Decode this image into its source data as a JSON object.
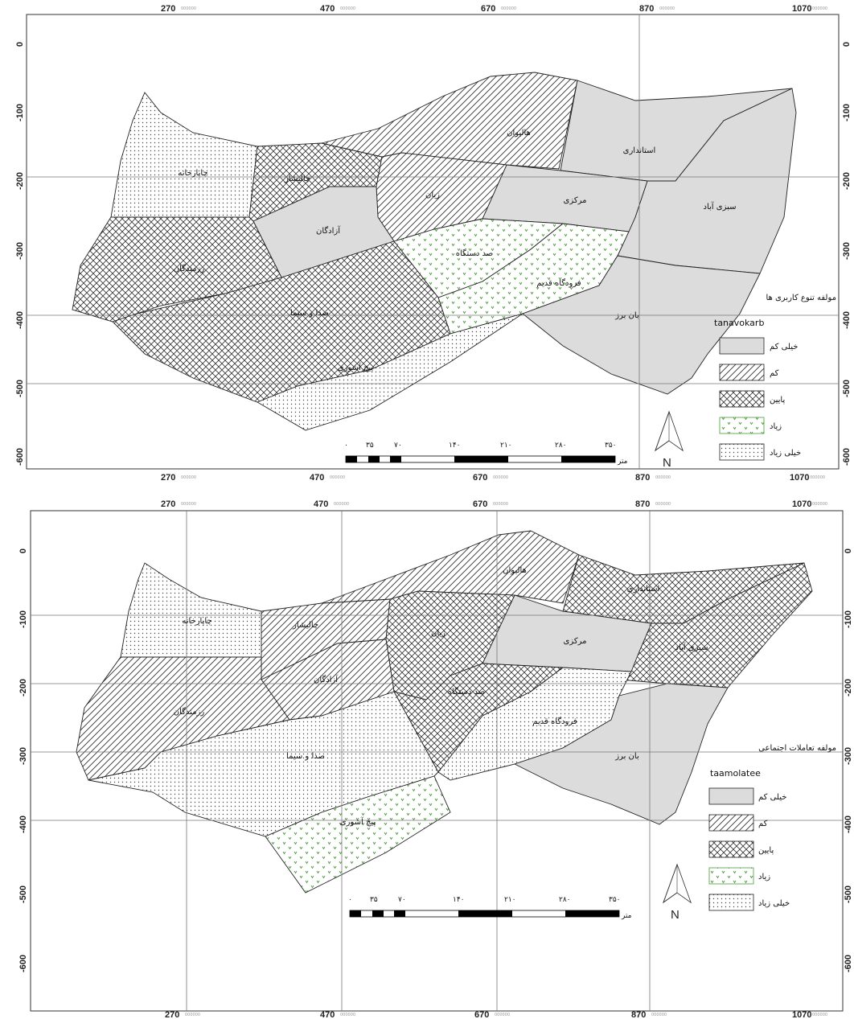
{
  "maps": [
    {
      "x_ticks": [
        "270",
        "470",
        "670",
        "870",
        "1070"
      ],
      "y_ticks": [
        "0",
        "-100",
        "-200",
        "-300",
        "-400",
        "-500",
        "-600"
      ],
      "tick_suffix": "000000",
      "legend": {
        "title": "مولفه تنوع کاربری ها",
        "field": "tanavokarb",
        "items": [
          {
            "label": "خیلی کم",
            "fill": "solid"
          },
          {
            "label": "کم",
            "fill": "diag"
          },
          {
            "label": "پایین",
            "fill": "cross"
          },
          {
            "label": "زیاد",
            "fill": "green"
          },
          {
            "label": "خیلی زیاد",
            "fill": "dots"
          }
        ]
      },
      "regions": [
        {
          "name": "چاپارخانه",
          "fill": "dots"
        },
        {
          "name": "چالیشار",
          "fill": "cross"
        },
        {
          "name": "هالیوان",
          "fill": "diag"
        },
        {
          "name": "استانداری",
          "fill": "solid"
        },
        {
          "name": "سبزی آباد",
          "fill": "solid"
        },
        {
          "name": "مرکزی",
          "fill": "solid"
        },
        {
          "name": "زیان",
          "fill": "diag"
        },
        {
          "name": "آزادگان",
          "fill": "solid"
        },
        {
          "name": "رزمندگان",
          "fill": "cross"
        },
        {
          "name": "صد دستگاه",
          "fill": "green"
        },
        {
          "name": "فرودگاه قدیم",
          "fill": "green"
        },
        {
          "name": "بان برز",
          "fill": "solid"
        },
        {
          "name": "صدا و سیما",
          "fill": "cross"
        },
        {
          "name": "پیچ آشوری",
          "fill": "dots"
        }
      ]
    },
    {
      "x_ticks": [
        "270",
        "470",
        "670",
        "870",
        "1070"
      ],
      "y_ticks": [
        "0",
        "-100",
        "-200",
        "-300",
        "-400",
        "-500",
        "-600"
      ],
      "tick_suffix": "000000",
      "legend": {
        "title": "مولفه تعاملات اجتماعی",
        "field": "taamolatee",
        "items": [
          {
            "label": "خیلی کم",
            "fill": "solid"
          },
          {
            "label": "کم",
            "fill": "diag"
          },
          {
            "label": "پایین",
            "fill": "cross"
          },
          {
            "label": "زیاد",
            "fill": "green"
          },
          {
            "label": "خیلی زیاد",
            "fill": "dots"
          }
        ]
      },
      "regions": [
        {
          "name": "چاپارخانه",
          "fill": "dots"
        },
        {
          "name": "چالیشار",
          "fill": "diag"
        },
        {
          "name": "هالیوان",
          "fill": "diag"
        },
        {
          "name": "استانداری",
          "fill": "cross"
        },
        {
          "name": "سبزی آباد",
          "fill": "cross"
        },
        {
          "name": "مرکزی",
          "fill": "solid"
        },
        {
          "name": "زیان",
          "fill": "cross"
        },
        {
          "name": "آزادگان",
          "fill": "diag"
        },
        {
          "name": "رزمندگان",
          "fill": "diag"
        },
        {
          "name": "صد دستگاه",
          "fill": "cross"
        },
        {
          "name": "فرودگاه قدیم",
          "fill": "dots"
        },
        {
          "name": "بان برز",
          "fill": "solid"
        },
        {
          "name": "صدا و سیما",
          "fill": "dots"
        },
        {
          "name": "پیچ آشوری",
          "fill": "green"
        }
      ]
    }
  ],
  "scale_bar": {
    "labels": [
      "۰",
      "۳۵",
      "۷۰",
      "۱۴۰",
      "۲۱۰",
      "۲۸۰",
      "۳۵۰"
    ],
    "unit": "متر"
  },
  "north_label": "N",
  "colors": {
    "solid": "#dcdcdc",
    "line": "#333333",
    "green": "#4a9a3a",
    "grid": "#777777"
  }
}
